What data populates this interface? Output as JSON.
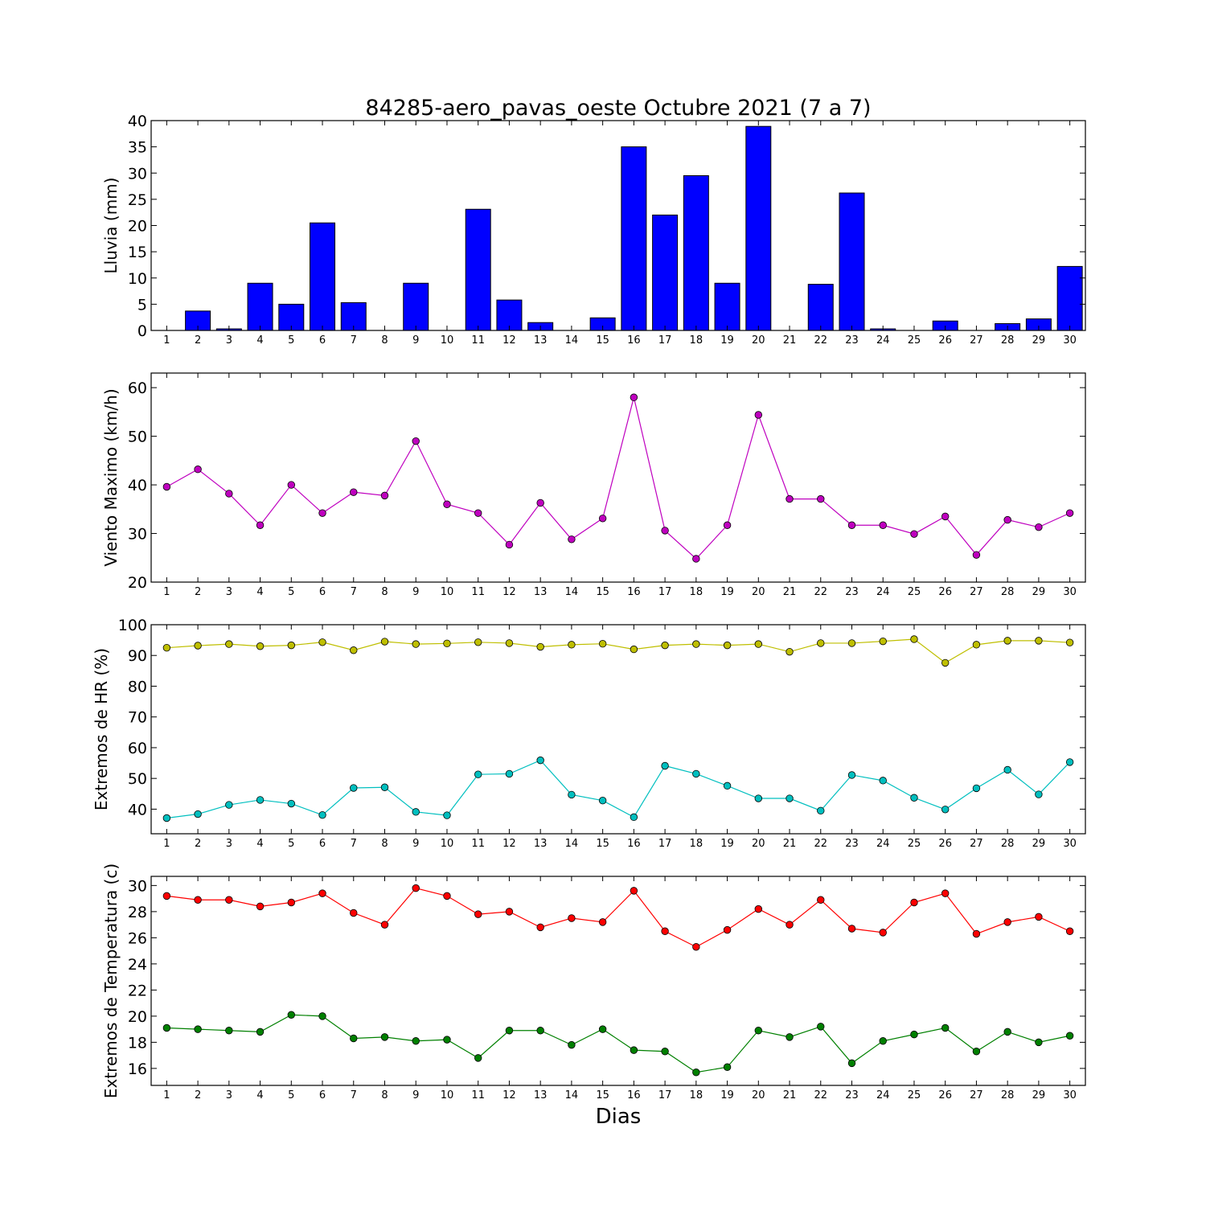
{
  "chart_data": [
    {
      "type": "bar",
      "title": "84285-aero_pavas_oeste Octubre 2021  (7 a 7)",
      "ylabel": "Lluvia (mm)",
      "xlabel": "",
      "ylim": [
        0,
        40
      ],
      "yticks": [
        0,
        5,
        10,
        15,
        20,
        25,
        30,
        35,
        40
      ],
      "categories": [
        "1",
        "2",
        "3",
        "4",
        "5",
        "6",
        "7",
        "8",
        "9",
        "10",
        "11",
        "12",
        "13",
        "14",
        "15",
        "16",
        "17",
        "18",
        "19",
        "20",
        "21",
        "22",
        "23",
        "24",
        "25",
        "26",
        "27",
        "28",
        "29",
        "30"
      ],
      "values": [
        0,
        3.7,
        0.3,
        9.0,
        5.0,
        20.5,
        5.3,
        0,
        9.0,
        0,
        23.1,
        5.8,
        1.5,
        0,
        2.4,
        35.0,
        22.0,
        29.5,
        9.0,
        38.9,
        0,
        8.8,
        26.2,
        0.3,
        0,
        1.8,
        0,
        1.3,
        2.2,
        12.2
      ],
      "color": "#0000ff"
    },
    {
      "type": "line",
      "ylabel": "Viento Maximo (km/h)",
      "ylim": [
        20,
        63
      ],
      "yticks": [
        20,
        30,
        40,
        50,
        60
      ],
      "x": [
        1,
        2,
        3,
        4,
        5,
        6,
        7,
        8,
        9,
        10,
        11,
        12,
        13,
        14,
        15,
        16,
        17,
        18,
        19,
        20,
        21,
        22,
        23,
        24,
        25,
        26,
        27,
        28,
        29,
        30
      ],
      "series": [
        {
          "values": [
            39.6,
            43.2,
            38.2,
            31.7,
            40.0,
            34.2,
            38.5,
            37.8,
            49.0,
            36.0,
            34.2,
            27.7,
            36.3,
            28.8,
            33.1,
            58.0,
            30.6,
            24.8,
            31.7,
            54.4,
            37.1,
            37.1,
            31.7,
            31.7,
            29.9,
            33.5,
            25.6,
            32.8,
            31.3,
            34.2
          ],
          "color": "#bf00bf"
        }
      ]
    },
    {
      "type": "line",
      "ylabel": "Extremos de HR (%)",
      "ylim": [
        32,
        100
      ],
      "yticks": [
        40,
        50,
        60,
        70,
        80,
        90,
        100
      ],
      "x": [
        1,
        2,
        3,
        4,
        5,
        6,
        7,
        8,
        9,
        10,
        11,
        12,
        13,
        14,
        15,
        16,
        17,
        18,
        19,
        20,
        21,
        22,
        23,
        24,
        25,
        26,
        27,
        28,
        29,
        30
      ],
      "series": [
        {
          "values": [
            92.5,
            93.2,
            93.7,
            93.0,
            93.3,
            94.3,
            91.7,
            94.5,
            93.7,
            93.9,
            94.3,
            94.0,
            92.8,
            93.5,
            93.8,
            92.0,
            93.3,
            93.7,
            93.3,
            93.7,
            91.2,
            94.0,
            94.0,
            94.6,
            95.3,
            87.6,
            93.5,
            94.8,
            94.8,
            94.2
          ],
          "color": "#bfbf00"
        },
        {
          "values": [
            37.1,
            38.4,
            41.4,
            43.0,
            41.8,
            38.1,
            46.9,
            47.1,
            39.1,
            38.0,
            51.3,
            51.5,
            55.9,
            44.7,
            42.8,
            37.4,
            54.1,
            51.5,
            47.6,
            43.5,
            43.5,
            39.5,
            51.1,
            49.3,
            43.7,
            39.9,
            46.8,
            52.8,
            44.8,
            55.3
          ],
          "color": "#00bfbf"
        }
      ]
    },
    {
      "type": "line",
      "ylabel": "Extremos de Temperatura (c)",
      "xlabel": "Dias",
      "ylim": [
        14.7,
        30.7
      ],
      "yticks": [
        16,
        18,
        20,
        22,
        24,
        26,
        28,
        30
      ],
      "x": [
        1,
        2,
        3,
        4,
        5,
        6,
        7,
        8,
        9,
        10,
        11,
        12,
        13,
        14,
        15,
        16,
        17,
        18,
        19,
        20,
        21,
        22,
        23,
        24,
        25,
        26,
        27,
        28,
        29,
        30
      ],
      "series": [
        {
          "values": [
            29.2,
            28.9,
            28.9,
            28.4,
            28.7,
            29.4,
            27.9,
            27.0,
            29.8,
            29.2,
            27.8,
            28.0,
            26.8,
            27.5,
            27.2,
            29.6,
            26.5,
            25.3,
            26.6,
            28.2,
            27.0,
            28.9,
            26.7,
            26.4,
            28.7,
            29.4,
            26.3,
            27.2,
            27.6,
            26.5
          ],
          "color": "#ff0000"
        },
        {
          "values": [
            19.1,
            19.0,
            18.9,
            18.8,
            20.1,
            20.0,
            18.3,
            18.4,
            18.1,
            18.2,
            16.8,
            18.9,
            18.9,
            17.8,
            19.0,
            17.4,
            17.3,
            15.7,
            16.1,
            18.9,
            18.4,
            19.2,
            16.4,
            18.1,
            18.6,
            19.1,
            17.3,
            18.8,
            18.0,
            18.5
          ],
          "color": "#008000"
        }
      ]
    }
  ]
}
